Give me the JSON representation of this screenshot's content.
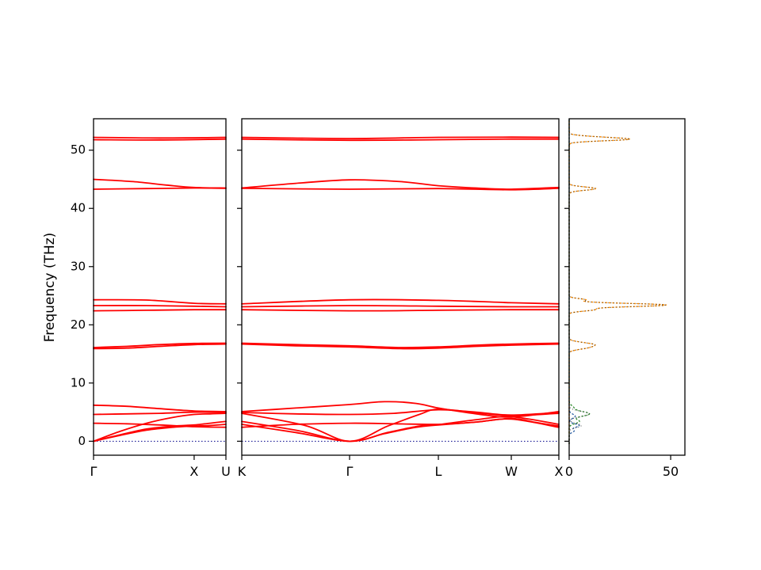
{
  "figure": {
    "background": "#ffffff"
  },
  "chart_data": {
    "type": "line",
    "title": "",
    "xlabel": "",
    "ylabel": "Frequency (THz)",
    "ylim": [
      -2.4,
      55.4
    ],
    "yticks": [
      0,
      10,
      20,
      30,
      40,
      50
    ],
    "band_color": "#ff0000",
    "zero_line": {
      "y": 0,
      "color": "#00008b"
    },
    "panels": [
      {
        "name": "bands-left",
        "kind": "bands",
        "xticks": [
          {
            "label": "Γ",
            "x": 0
          },
          {
            "label": "X",
            "x": 0.76
          },
          {
            "label": "U",
            "x": 1
          }
        ],
        "bands": [
          [
            [
              0,
              0
            ],
            [
              0.2,
              1.0
            ],
            [
              0.4,
              1.9
            ],
            [
              0.6,
              2.4
            ],
            [
              0.76,
              2.6
            ],
            [
              0.88,
              2.7
            ],
            [
              1,
              2.9
            ]
          ],
          [
            [
              0,
              0
            ],
            [
              0.2,
              1.1
            ],
            [
              0.4,
              2.1
            ],
            [
              0.6,
              2.6
            ],
            [
              0.76,
              2.8
            ],
            [
              0.88,
              3.1
            ],
            [
              1,
              3.4
            ]
          ],
          [
            [
              0,
              0
            ],
            [
              0.2,
              1.7
            ],
            [
              0.4,
              3.1
            ],
            [
              0.6,
              4.1
            ],
            [
              0.76,
              4.6
            ],
            [
              0.88,
              4.7
            ],
            [
              1,
              4.8
            ]
          ],
          [
            [
              0,
              3.1
            ],
            [
              0.25,
              3.0
            ],
            [
              0.5,
              2.8
            ],
            [
              0.76,
              2.5
            ],
            [
              1,
              2.4
            ]
          ],
          [
            [
              0,
              4.6
            ],
            [
              0.25,
              4.7
            ],
            [
              0.5,
              4.8
            ],
            [
              0.76,
              5.0
            ],
            [
              1,
              4.95
            ]
          ],
          [
            [
              0,
              6.2
            ],
            [
              0.25,
              6.0
            ],
            [
              0.5,
              5.6
            ],
            [
              0.76,
              5.2
            ],
            [
              1,
              5.1
            ]
          ],
          [
            [
              0,
              15.9
            ],
            [
              0.25,
              16.0
            ],
            [
              0.5,
              16.3
            ],
            [
              0.76,
              16.6
            ],
            [
              1,
              16.7
            ]
          ],
          [
            [
              0,
              16.1
            ],
            [
              0.25,
              16.3
            ],
            [
              0.5,
              16.6
            ],
            [
              0.76,
              16.8
            ],
            [
              1,
              16.85
            ]
          ],
          [
            [
              0,
              22.4
            ],
            [
              0.4,
              22.5
            ],
            [
              0.76,
              22.6
            ],
            [
              1,
              22.6
            ]
          ],
          [
            [
              0,
              23.3
            ],
            [
              0.4,
              23.3
            ],
            [
              0.76,
              23.2
            ],
            [
              1,
              23.1
            ]
          ],
          [
            [
              0,
              24.3
            ],
            [
              0.4,
              24.25
            ],
            [
              0.76,
              23.7
            ],
            [
              1,
              23.6
            ]
          ],
          [
            [
              0,
              43.3
            ],
            [
              0.4,
              43.4
            ],
            [
              0.76,
              43.5
            ],
            [
              1,
              43.45
            ]
          ],
          [
            [
              0,
              45.0
            ],
            [
              0.3,
              44.6
            ],
            [
              0.55,
              44.0
            ],
            [
              0.76,
              43.6
            ],
            [
              1,
              43.5
            ]
          ],
          [
            [
              0,
              51.8
            ],
            [
              0.5,
              51.75
            ],
            [
              1,
              51.9
            ]
          ],
          [
            [
              0,
              52.2
            ],
            [
              0.5,
              52.1
            ],
            [
              1,
              52.2
            ]
          ]
        ]
      },
      {
        "name": "bands-middle",
        "kind": "bands",
        "xticks": [
          {
            "label": "K",
            "x": 0
          },
          {
            "label": "Γ",
            "x": 0.34
          },
          {
            "label": "L",
            "x": 0.62
          },
          {
            "label": "W",
            "x": 0.85
          },
          {
            "label": "X",
            "x": 1
          }
        ],
        "bands": [
          [
            [
              0,
              2.9
            ],
            [
              0.17,
              1.5
            ],
            [
              0.34,
              0
            ],
            [
              0.45,
              1.3
            ],
            [
              0.55,
              2.4
            ],
            [
              0.62,
              2.8
            ],
            [
              0.74,
              3.3
            ],
            [
              0.85,
              3.9
            ],
            [
              0.93,
              3.2
            ],
            [
              1,
              2.6
            ]
          ],
          [
            [
              0,
              3.4
            ],
            [
              0.18,
              1.8
            ],
            [
              0.34,
              0
            ],
            [
              0.46,
              1.5
            ],
            [
              0.56,
              2.6
            ],
            [
              0.62,
              2.85
            ],
            [
              0.74,
              3.7
            ],
            [
              0.85,
              4.2
            ],
            [
              1,
              2.9
            ]
          ],
          [
            [
              0,
              4.8
            ],
            [
              0.2,
              2.7
            ],
            [
              0.34,
              0
            ],
            [
              0.46,
              2.6
            ],
            [
              0.56,
              4.6
            ],
            [
              0.62,
              5.5
            ],
            [
              0.74,
              4.9
            ],
            [
              0.85,
              4.4
            ],
            [
              1,
              4.8
            ]
          ],
          [
            [
              0,
              2.4
            ],
            [
              0.17,
              2.9
            ],
            [
              0.34,
              3.1
            ],
            [
              0.48,
              3.0
            ],
            [
              0.62,
              2.9
            ],
            [
              0.74,
              3.3
            ],
            [
              0.85,
              3.8
            ],
            [
              1,
              2.4
            ]
          ],
          [
            [
              0,
              4.95
            ],
            [
              0.17,
              4.7
            ],
            [
              0.34,
              4.6
            ],
            [
              0.48,
              4.8
            ],
            [
              0.62,
              5.4
            ],
            [
              0.74,
              5.0
            ],
            [
              0.85,
              4.5
            ],
            [
              1,
              4.95
            ]
          ],
          [
            [
              0,
              5.1
            ],
            [
              0.17,
              5.7
            ],
            [
              0.34,
              6.3
            ],
            [
              0.45,
              6.8
            ],
            [
              0.55,
              6.5
            ],
            [
              0.62,
              5.7
            ],
            [
              0.74,
              4.7
            ],
            [
              0.85,
              4.15
            ],
            [
              1,
              5.1
            ]
          ],
          [
            [
              0,
              16.7
            ],
            [
              0.17,
              16.4
            ],
            [
              0.34,
              16.2
            ],
            [
              0.5,
              15.9
            ],
            [
              0.62,
              16.0
            ],
            [
              0.74,
              16.3
            ],
            [
              0.85,
              16.5
            ],
            [
              1,
              16.7
            ]
          ],
          [
            [
              0,
              16.85
            ],
            [
              0.17,
              16.6
            ],
            [
              0.34,
              16.4
            ],
            [
              0.5,
              16.1
            ],
            [
              0.62,
              16.2
            ],
            [
              0.74,
              16.5
            ],
            [
              0.85,
              16.7
            ],
            [
              1,
              16.85
            ]
          ],
          [
            [
              0,
              22.6
            ],
            [
              0.34,
              22.4
            ],
            [
              0.62,
              22.5
            ],
            [
              0.85,
              22.6
            ],
            [
              1,
              22.6
            ]
          ],
          [
            [
              0,
              23.1
            ],
            [
              0.34,
              23.3
            ],
            [
              0.62,
              23.2
            ],
            [
              0.85,
              23.1
            ],
            [
              1,
              23.1
            ]
          ],
          [
            [
              0,
              23.6
            ],
            [
              0.34,
              24.3
            ],
            [
              0.62,
              24.2
            ],
            [
              0.85,
              23.8
            ],
            [
              1,
              23.6
            ]
          ],
          [
            [
              0,
              43.45
            ],
            [
              0.34,
              43.3
            ],
            [
              0.62,
              43.4
            ],
            [
              0.85,
              43.2
            ],
            [
              1,
              43.45
            ]
          ],
          [
            [
              0,
              43.5
            ],
            [
              0.17,
              44.3
            ],
            [
              0.34,
              44.9
            ],
            [
              0.5,
              44.6
            ],
            [
              0.62,
              43.9
            ],
            [
              0.74,
              43.5
            ],
            [
              0.85,
              43.3
            ],
            [
              1,
              43.6
            ]
          ],
          [
            [
              0,
              51.9
            ],
            [
              0.34,
              51.7
            ],
            [
              0.62,
              51.8
            ],
            [
              0.85,
              51.9
            ],
            [
              1,
              51.9
            ]
          ],
          [
            [
              0,
              52.2
            ],
            [
              0.34,
              52.0
            ],
            [
              0.62,
              52.2
            ],
            [
              0.85,
              52.25
            ],
            [
              1,
              52.2
            ]
          ]
        ]
      },
      {
        "name": "dos",
        "kind": "dos",
        "xlim": [
          0,
          57
        ],
        "xticks": [
          {
            "label": "0",
            "x": 0
          },
          {
            "label": "50",
            "x": 0.877
          }
        ],
        "series": [
          {
            "name": "pdos-orange",
            "color": "#ff8c00",
            "dash": "2.5 2",
            "width": 1.4,
            "peaks": [
              {
                "c": 52.0,
                "h": 22,
                "w": 0.45
              },
              {
                "c": 51.8,
                "h": 10,
                "w": 0.3
              },
              {
                "c": 43.4,
                "h": 13,
                "w": 0.4
              },
              {
                "c": 24.3,
                "h": 8,
                "w": 0.3
              },
              {
                "c": 23.4,
                "h": 48,
                "w": 0.4
              },
              {
                "c": 22.6,
                "h": 12,
                "w": 0.35
              },
              {
                "c": 16.6,
                "h": 12,
                "w": 0.5
              },
              {
                "c": 16.0,
                "h": 6,
                "w": 0.4
              }
            ]
          },
          {
            "name": "pdos-green",
            "color": "#2e8b2e",
            "dash": "2.5 2",
            "width": 1.3,
            "peaks": [
              {
                "c": 4.7,
                "h": 10,
                "w": 0.6
              },
              {
                "c": 3.4,
                "h": 5,
                "w": 0.5
              },
              {
                "c": 5.8,
                "h": 2,
                "w": 0.5
              }
            ]
          },
          {
            "name": "pdos-blue",
            "color": "#2b5fa3",
            "dash": "2.5 2",
            "width": 1.3,
            "peaks": [
              {
                "c": 2.7,
                "h": 5,
                "w": 0.4
              },
              {
                "c": 1.8,
                "h": 2.5,
                "w": 0.4
              },
              {
                "c": 4.3,
                "h": 3,
                "w": 0.5
              }
            ]
          },
          {
            "name": "dos-total",
            "color": "#333333",
            "dash": "1 2.6",
            "width": 0.9,
            "peaks": [
              {
                "c": 52.0,
                "h": 22,
                "w": 0.45
              },
              {
                "c": 51.8,
                "h": 10,
                "w": 0.3
              },
              {
                "c": 43.4,
                "h": 13,
                "w": 0.4
              },
              {
                "c": 24.3,
                "h": 8,
                "w": 0.3
              },
              {
                "c": 23.4,
                "h": 48,
                "w": 0.4
              },
              {
                "c": 22.6,
                "h": 12,
                "w": 0.35
              },
              {
                "c": 16.6,
                "h": 12,
                "w": 0.5
              },
              {
                "c": 16.0,
                "h": 6,
                "w": 0.4
              },
              {
                "c": 4.7,
                "h": 10,
                "w": 0.6
              },
              {
                "c": 2.7,
                "h": 6,
                "w": 0.5
              }
            ]
          }
        ]
      }
    ]
  }
}
